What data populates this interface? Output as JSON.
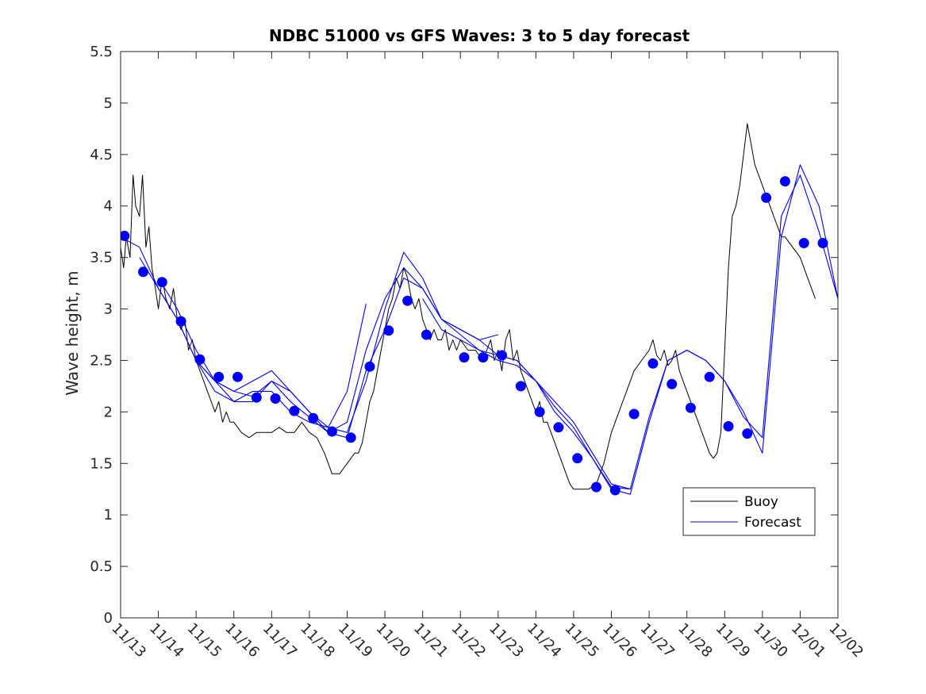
{
  "chart_data": {
    "type": "line",
    "title": "NDBC 51000 vs GFS Waves: 3 to 5 day forecast",
    "xlabel": "",
    "ylabel": "Wave height, m",
    "x_unit": "days since 11/13 00:00",
    "xlim": [
      0,
      19
    ],
    "ylim": [
      0,
      5.5
    ],
    "xticks": [
      0,
      1,
      2,
      3,
      4,
      5,
      6,
      7,
      8,
      9,
      10,
      11,
      12,
      13,
      14,
      15,
      16,
      17,
      18,
      19
    ],
    "xtick_labels": [
      "11/13",
      "11/14",
      "11/15",
      "11/16",
      "11/17",
      "11/18",
      "11/19",
      "11/20",
      "11/21",
      "11/22",
      "11/23",
      "11/24",
      "11/25",
      "11/26",
      "11/27",
      "11/28",
      "11/29",
      "11/30",
      "12/01",
      "12/02"
    ],
    "yticks": [
      0,
      0.5,
      1,
      1.5,
      2,
      2.5,
      3,
      3.5,
      4,
      4.5,
      5,
      5.5
    ],
    "ytick_labels": [
      "0",
      "0.5",
      "1",
      "1.5",
      "2",
      "2.5",
      "3",
      "3.5",
      "4",
      "4.5",
      "5",
      "5.5"
    ],
    "grid": false,
    "legend": {
      "position": "lower-right",
      "entries": [
        "Buoy",
        "Forecast"
      ]
    },
    "colors": {
      "buoy": "#000000",
      "forecast": "#0000ee",
      "marker": "#0000ff"
    },
    "series": [
      {
        "name": "Buoy",
        "x": [
          0,
          0.08,
          0.15,
          0.25,
          0.33,
          0.4,
          0.5,
          0.58,
          0.67,
          0.75,
          0.83,
          0.92,
          1,
          1.1,
          1.2,
          1.3,
          1.4,
          1.5,
          1.6,
          1.7,
          1.8,
          1.9,
          2,
          2.1,
          2.2,
          2.3,
          2.4,
          2.5,
          2.6,
          2.7,
          2.8,
          2.9,
          3,
          3.2,
          3.4,
          3.6,
          3.8,
          4,
          4.2,
          4.4,
          4.6,
          4.8,
          5,
          5.2,
          5.4,
          5.5,
          5.6,
          5.8,
          6,
          6.2,
          6.3,
          6.4,
          6.5,
          6.6,
          6.7,
          6.8,
          6.9,
          7,
          7.1,
          7.2,
          7.3,
          7.4,
          7.5,
          7.6,
          7.7,
          7.8,
          7.9,
          8,
          8.1,
          8.2,
          8.3,
          8.4,
          8.5,
          8.6,
          8.7,
          8.8,
          8.9,
          9,
          9.2,
          9.4,
          9.6,
          9.7,
          9.8,
          9.9,
          10,
          10.1,
          10.2,
          10.3,
          10.4,
          10.5,
          10.6,
          10.7,
          10.8,
          10.9,
          11,
          11.1,
          11.2,
          11.3,
          11.4,
          11.5,
          11.6,
          11.7,
          11.8,
          11.9,
          12,
          12.2,
          12.4,
          12.6,
          12.8,
          13,
          13.2,
          13.4,
          13.6,
          13.8,
          14,
          14.1,
          14.2,
          14.3,
          14.4,
          14.5,
          14.6,
          14.7,
          14.8,
          14.9,
          15,
          15.1,
          15.2,
          15.3,
          15.4,
          15.5,
          15.6,
          15.7,
          15.8,
          15.9,
          16,
          16.1,
          16.2,
          16.3,
          16.4,
          16.5,
          16.6,
          16.7,
          16.8,
          16.9,
          17,
          17.1,
          17.2,
          17.3,
          17.4,
          17.5,
          17.6,
          17.7,
          17.8,
          17.9,
          18,
          18.1,
          18.2,
          18.3,
          18.4
        ],
        "values": [
          3.6,
          3.4,
          3.7,
          3.5,
          4.3,
          4.0,
          3.9,
          4.3,
          3.6,
          3.8,
          3.4,
          3.2,
          3.0,
          3.3,
          3.1,
          3.0,
          3.2,
          2.9,
          2.8,
          2.9,
          2.6,
          2.7,
          2.5,
          2.4,
          2.3,
          2.2,
          2.1,
          2.0,
          2.1,
          1.9,
          2.0,
          1.9,
          1.9,
          1.8,
          1.75,
          1.8,
          1.8,
          1.8,
          1.85,
          1.8,
          1.8,
          1.9,
          1.8,
          1.75,
          1.6,
          1.5,
          1.4,
          1.4,
          1.5,
          1.6,
          1.6,
          1.7,
          1.9,
          2.1,
          2.2,
          2.4,
          2.6,
          2.8,
          3.0,
          3.1,
          3.3,
          3.2,
          3.4,
          3.3,
          3.1,
          3.0,
          3.1,
          2.9,
          2.8,
          2.7,
          2.8,
          2.7,
          2.7,
          2.8,
          2.6,
          2.7,
          2.6,
          2.7,
          2.6,
          2.6,
          2.5,
          2.6,
          2.7,
          2.5,
          2.6,
          2.4,
          2.7,
          2.8,
          2.5,
          2.6,
          2.4,
          2.3,
          2.2,
          2.1,
          2.0,
          2.1,
          1.9,
          1.9,
          1.8,
          1.7,
          1.6,
          1.5,
          1.4,
          1.3,
          1.25,
          1.25,
          1.25,
          1.3,
          1.5,
          1.8,
          2.0,
          2.2,
          2.4,
          2.5,
          2.6,
          2.7,
          2.55,
          2.5,
          2.6,
          2.45,
          2.5,
          2.6,
          2.4,
          2.3,
          2.2,
          2.1,
          2.0,
          1.9,
          1.8,
          1.7,
          1.6,
          1.55,
          1.6,
          1.8,
          2.6,
          3.4,
          3.9,
          4.0,
          4.2,
          4.5,
          4.8,
          4.6,
          4.4,
          4.3,
          4.2,
          4.1,
          4.0,
          3.9,
          3.8,
          3.7,
          3.7,
          3.65,
          3.6,
          3.55,
          3.5,
          3.4,
          3.3,
          3.2,
          3.1
        ]
      },
      {
        "name": "Forecast run 1",
        "x": [
          0,
          0.5,
          1,
          1.5,
          2,
          2.5,
          3,
          3.5,
          4,
          4.5,
          5,
          5.5,
          6,
          6.5
        ],
        "values": [
          3.7,
          3.6,
          3.2,
          2.9,
          2.5,
          2.2,
          2.1,
          2.2,
          2.2,
          2.0,
          1.9,
          1.85,
          2.2,
          3.05
        ]
      },
      {
        "name": "Forecast run 2",
        "x": [
          0.5,
          1,
          1.5,
          2,
          2.5,
          3,
          3.5,
          4,
          4.5,
          5,
          5.5,
          6,
          6.5,
          7,
          7.5,
          8,
          8.5,
          9,
          9.5,
          10
        ],
        "values": [
          3.5,
          3.2,
          2.9,
          2.5,
          2.3,
          2.2,
          2.3,
          2.4,
          2.2,
          2.0,
          1.8,
          1.9,
          2.6,
          3.1,
          3.4,
          3.2,
          2.9,
          2.8,
          2.7,
          2.75
        ]
      },
      {
        "name": "Forecast run 3",
        "x": [
          1,
          1.5,
          2,
          2.5,
          3,
          3.5,
          4,
          4.5,
          5,
          5.5,
          6,
          6.5,
          7,
          7.5,
          8,
          8.5,
          9,
          9.5,
          10,
          10.5,
          11,
          11.5,
          12,
          12.5,
          13,
          13.5
        ],
        "values": [
          3.3,
          3.0,
          2.6,
          2.3,
          2.1,
          2.1,
          2.3,
          2.2,
          2.0,
          1.85,
          1.8,
          2.3,
          3.0,
          3.55,
          3.3,
          2.9,
          2.8,
          2.7,
          2.55,
          2.5,
          2.3,
          2.1,
          1.9,
          1.6,
          1.3,
          1.25
        ]
      },
      {
        "name": "Forecast run 4",
        "x": [
          2,
          2.5,
          3,
          3.5,
          4,
          4.5,
          5,
          5.5,
          6,
          6.5,
          7,
          7.5,
          8,
          8.5,
          9,
          9.5,
          10,
          10.5,
          11,
          11.5,
          12,
          12.5,
          13,
          13.5,
          14,
          14.5,
          15,
          15.5,
          16,
          16.5,
          17,
          17.5,
          18,
          18.5,
          19
        ],
        "values": [
          2.5,
          2.3,
          2.2,
          2.15,
          2.3,
          2.1,
          1.95,
          1.8,
          1.75,
          2.4,
          2.8,
          3.3,
          3.2,
          2.9,
          2.75,
          2.6,
          2.5,
          2.45,
          2.3,
          2.0,
          1.8,
          1.55,
          1.25,
          1.2,
          1.9,
          2.5,
          2.6,
          2.5,
          2.3,
          2.0,
          1.6,
          3.7,
          4.4,
          4.0,
          3.1
        ]
      },
      {
        "name": "Forecast run 5",
        "x": [
          8,
          8.5,
          9,
          9.5,
          10,
          10.5,
          11,
          11.5,
          12,
          12.5,
          13,
          13.5,
          14,
          14.5,
          15,
          15.5,
          16,
          16.5,
          17,
          17.5,
          18,
          18.5,
          19
        ],
        "values": [
          3.1,
          2.8,
          2.7,
          2.6,
          2.55,
          2.5,
          2.3,
          2.05,
          1.85,
          1.55,
          1.27,
          1.25,
          1.95,
          2.5,
          2.6,
          2.5,
          2.3,
          1.95,
          1.75,
          3.9,
          4.3,
          3.75,
          3.1
        ]
      }
    ],
    "markers": {
      "name": "Forecast points",
      "x": [
        0.1,
        0.6,
        1.1,
        1.6,
        2.1,
        2.6,
        3.1,
        3.6,
        4.1,
        4.6,
        5.1,
        5.6,
        6.1,
        6.6,
        7.1,
        7.6,
        8.1,
        9.1,
        9.6,
        10.1,
        10.6,
        11.1,
        11.6,
        12.1,
        12.6,
        13.1,
        13.6,
        14.1,
        14.6,
        15.1,
        15.6,
        16.1,
        16.6,
        17.1,
        17.6,
        18.1,
        18.6
      ],
      "values": [
        3.71,
        3.36,
        3.26,
        2.88,
        2.51,
        2.34,
        2.34,
        2.14,
        2.13,
        2.01,
        1.94,
        1.81,
        1.75,
        2.44,
        2.79,
        3.08,
        2.75,
        2.53,
        2.53,
        2.55,
        2.25,
        2.0,
        1.85,
        1.55,
        1.27,
        1.24,
        1.98,
        2.47,
        2.27,
        2.04,
        2.34,
        1.86,
        1.79,
        4.08,
        4.24,
        3.64,
        3.64
      ]
    }
  }
}
